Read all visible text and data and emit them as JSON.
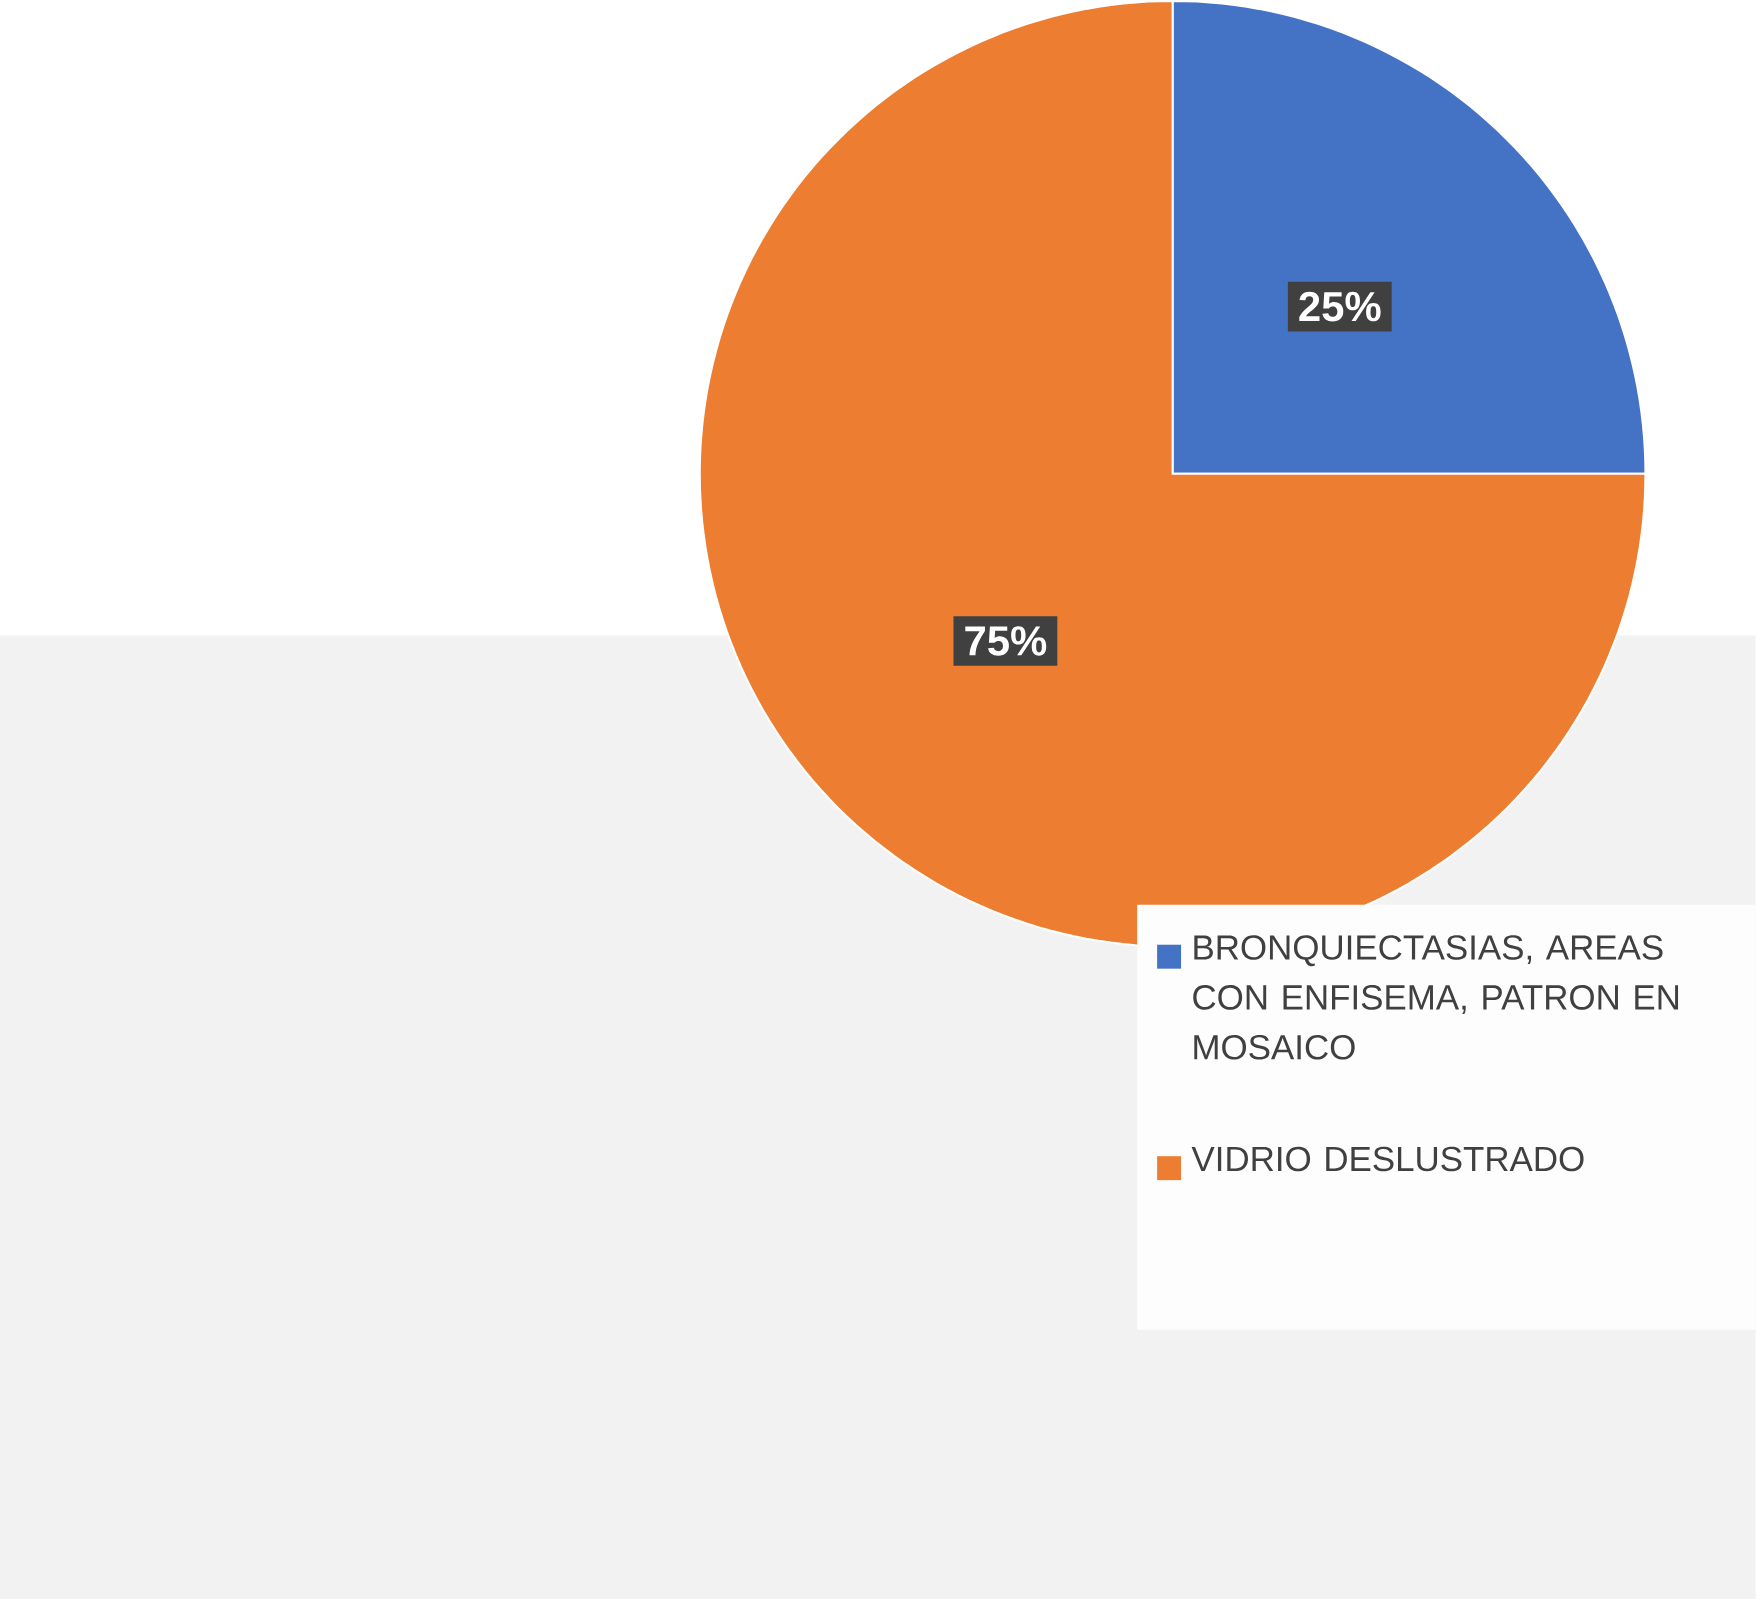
{
  "chart_data": {
    "type": "pie",
    "categories": [
      "BRONQUIECTASIAS, AREAS CON ENFISEMA, PATRON EN MOSAICO",
      "VIDRIO DESLUSTRADO"
    ],
    "values": [
      25,
      75
    ],
    "colors": [
      "#4472c4",
      "#ed7d31"
    ],
    "value_labels": [
      "25%",
      "75%"
    ],
    "legend": "right"
  }
}
